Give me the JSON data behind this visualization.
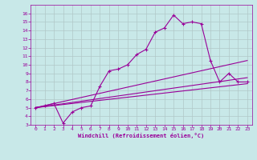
{
  "xlabel": "Windchill (Refroidissement éolien,°C)",
  "bg_color": "#c8e8e8",
  "line_color": "#990099",
  "grid_color": "#b0c8c8",
  "xlim": [
    -0.5,
    23.5
  ],
  "ylim": [
    3,
    17
  ],
  "xticks": [
    0,
    1,
    2,
    3,
    4,
    5,
    6,
    7,
    8,
    9,
    10,
    11,
    12,
    13,
    14,
    15,
    16,
    17,
    18,
    19,
    20,
    21,
    22,
    23
  ],
  "yticks": [
    3,
    4,
    5,
    6,
    7,
    8,
    9,
    10,
    11,
    12,
    13,
    14,
    15,
    16
  ],
  "series1_x": [
    0,
    1,
    2,
    3,
    4,
    5,
    6,
    7,
    8,
    9,
    10,
    11,
    12,
    13,
    14,
    15,
    16,
    17,
    18,
    19,
    20,
    21,
    22,
    23
  ],
  "series1_y": [
    5.0,
    5.2,
    5.5,
    3.2,
    4.5,
    5.0,
    5.2,
    7.5,
    9.3,
    9.5,
    10.0,
    11.2,
    11.8,
    13.8,
    14.3,
    15.8,
    14.8,
    15.0,
    14.8,
    10.5,
    8.0,
    9.0,
    8.0,
    8.0
  ],
  "series2_x": [
    0,
    23
  ],
  "series2_y": [
    5.0,
    10.5
  ],
  "series3_x": [
    0,
    23
  ],
  "series3_y": [
    5.0,
    8.5
  ],
  "series4_x": [
    0,
    23
  ],
  "series4_y": [
    5.0,
    7.8
  ]
}
